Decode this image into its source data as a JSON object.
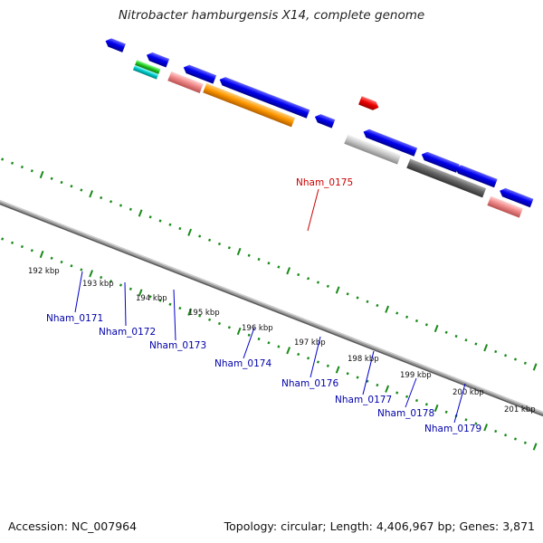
{
  "title": "Nitrobacter hamburgensis X14, complete genome",
  "footer": {
    "accession": "Accession: NC_007964",
    "topology": "Topology: circular; Length: 4,406,967 bp; Genes: 3,871"
  },
  "colors": {
    "backbone": "#808080",
    "tick": "#1a8a1a",
    "label_blue": "#0000aa",
    "label_red": "#cc0000",
    "leader_blue": "#0000cc",
    "leader_red": "#cc0000"
  },
  "scale": {
    "labels": [
      "192 kbp",
      "193 kbp",
      "194 kbp",
      "195 kbp",
      "196 kbp",
      "197 kbp",
      "198 kbp",
      "199 kbp",
      "200 kbp",
      "201 kbp"
    ]
  },
  "genes": [
    {
      "name": "Nham_0171",
      "label": "Nham_0171",
      "color": "blue"
    },
    {
      "name": "Nham_0172",
      "label": "Nham_0172",
      "color": "blue"
    },
    {
      "name": "Nham_0173",
      "label": "Nham_0173",
      "color": "blue"
    },
    {
      "name": "Nham_0174",
      "label": "Nham_0174",
      "color": "blue"
    },
    {
      "name": "Nham_0175",
      "label": "Nham_0175",
      "color": "red"
    },
    {
      "name": "Nham_0176",
      "label": "Nham_0176",
      "color": "blue"
    },
    {
      "name": "Nham_0177",
      "label": "Nham_0177",
      "color": "blue"
    },
    {
      "name": "Nham_0178",
      "label": "Nham_0178",
      "color": "blue"
    },
    {
      "name": "Nham_0179",
      "label": "Nham_0179",
      "color": "blue"
    }
  ]
}
